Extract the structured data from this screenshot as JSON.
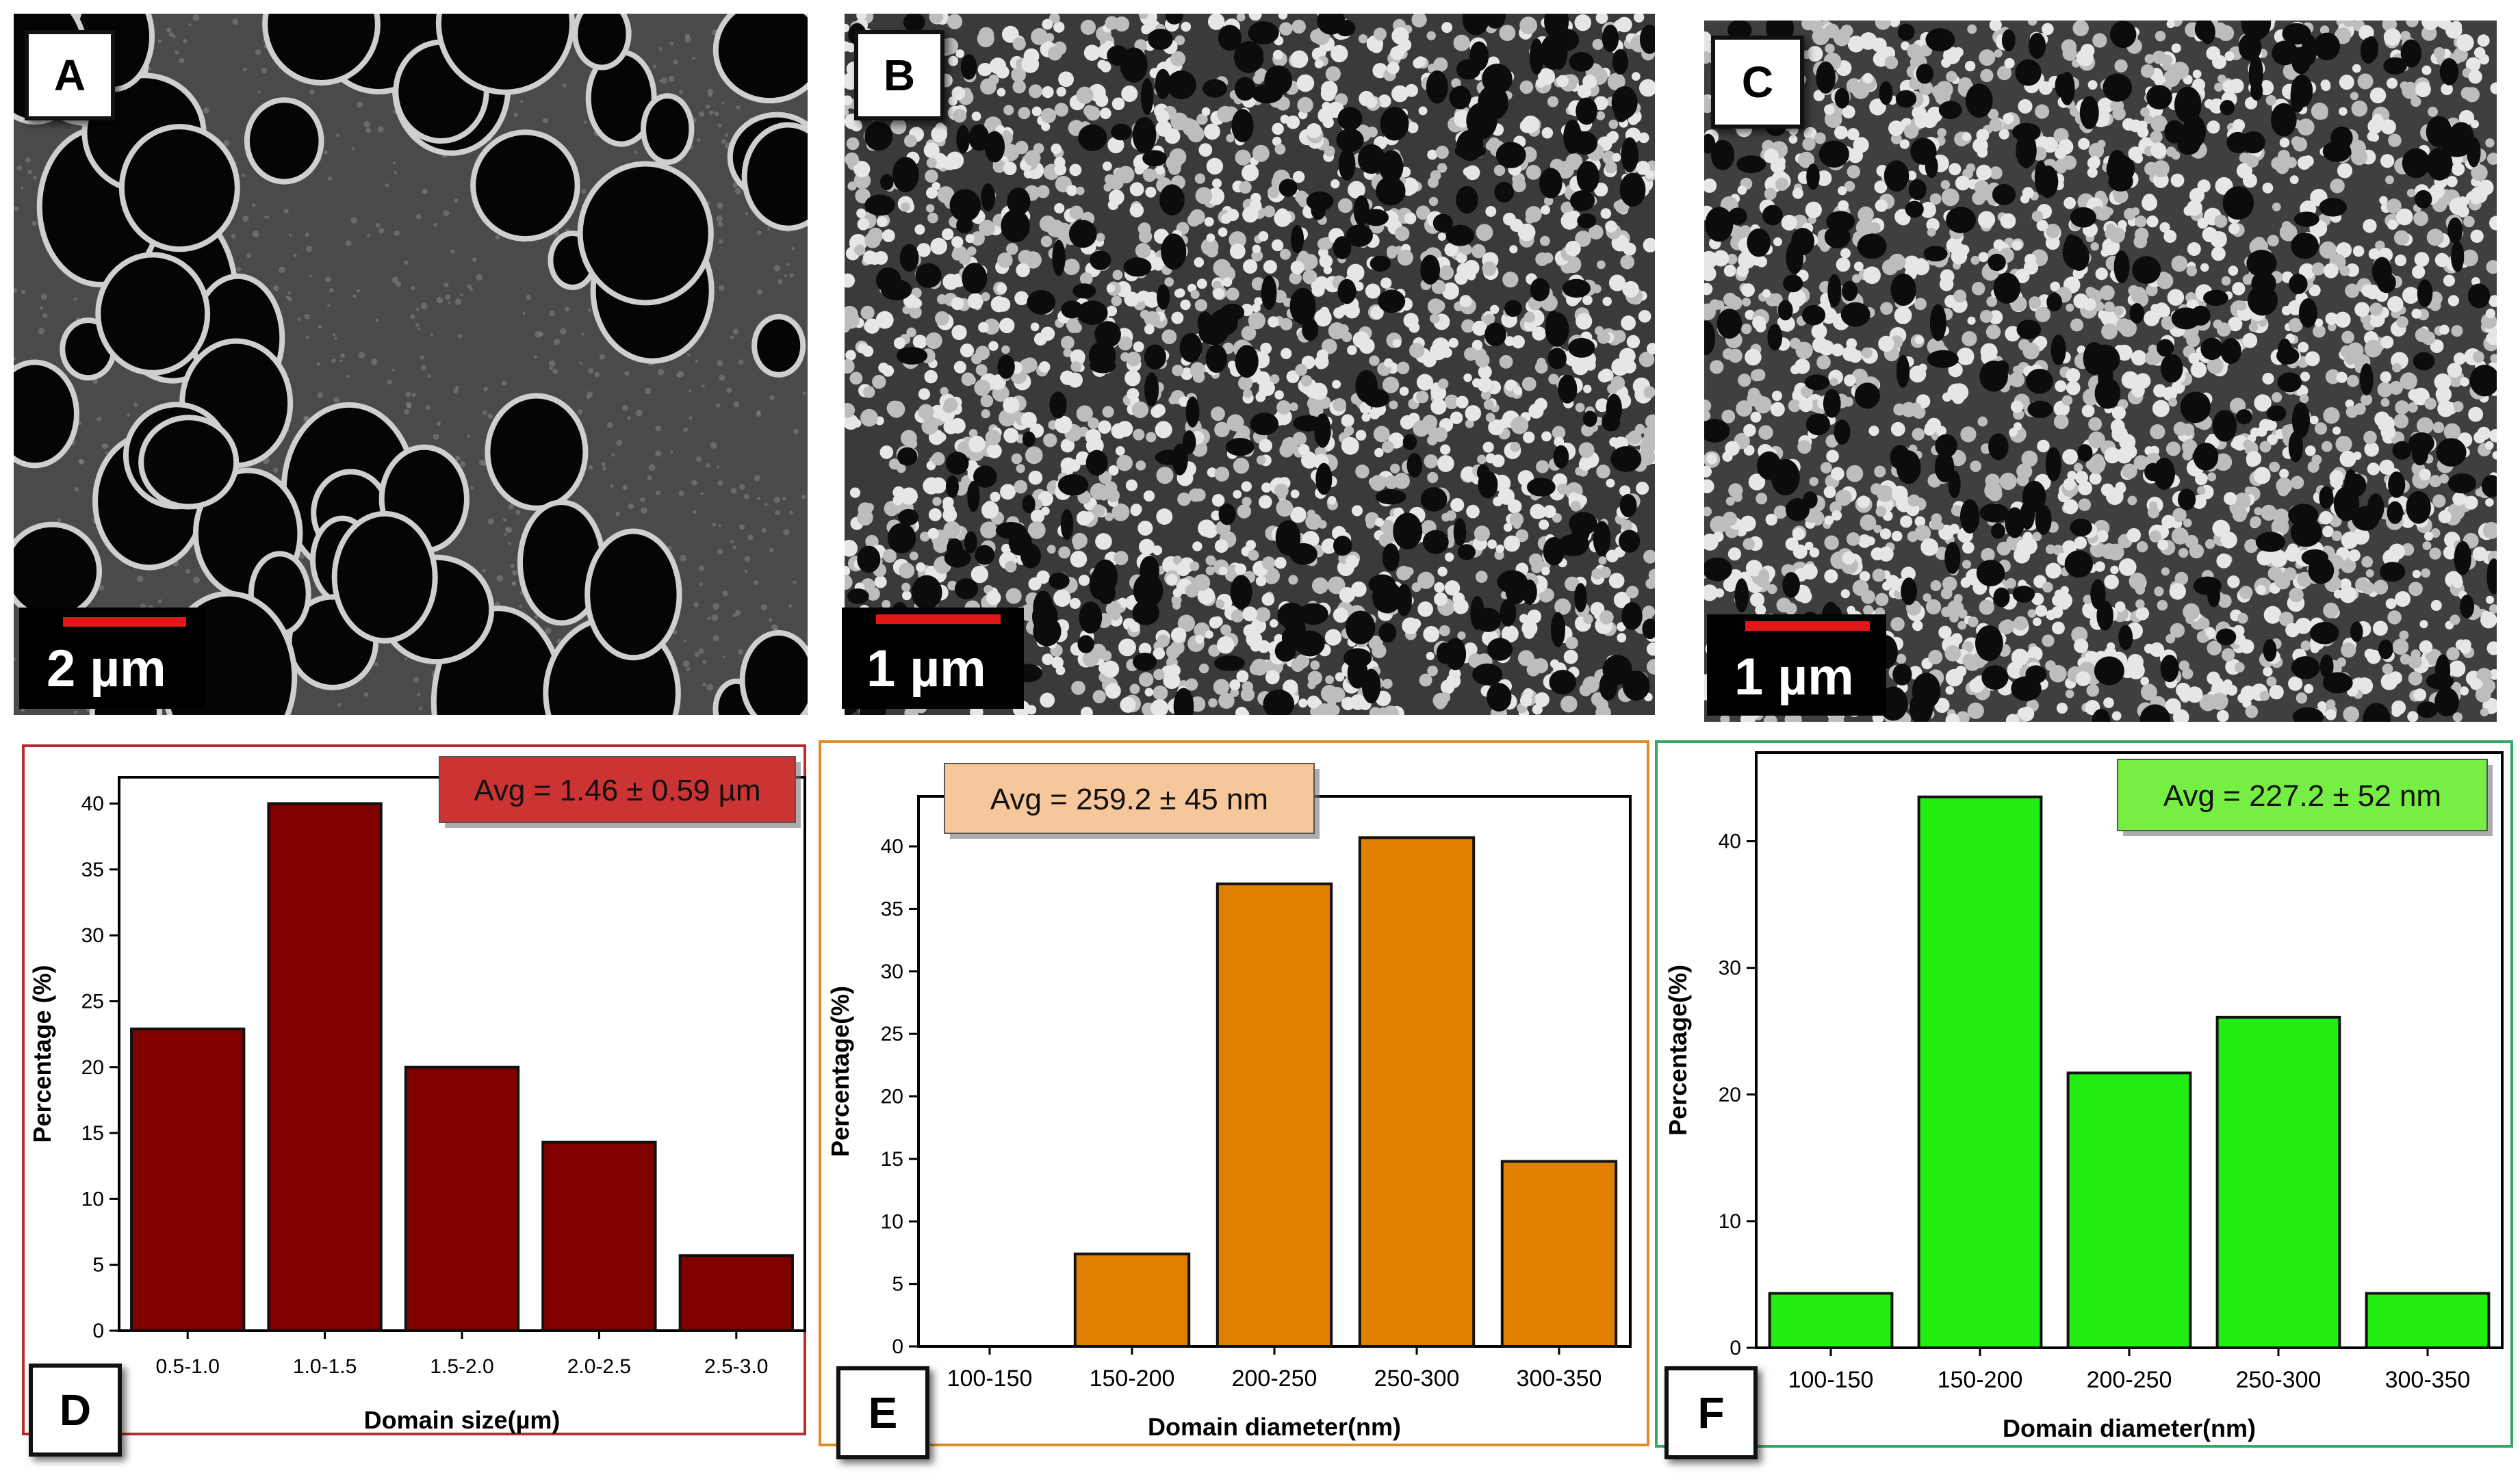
{
  "micrographs": [
    {
      "letter": "A",
      "scale_label": "2 µm"
    },
    {
      "letter": "B",
      "scale_label": "1 µm"
    },
    {
      "letter": "C",
      "scale_label": "1 µm"
    }
  ],
  "colors": {
    "d_bar": "#800000",
    "e_bar": "#e08000",
    "f_bar": "#22ee11",
    "d_frame": "#b03030",
    "e_frame": "#e08a2a",
    "f_frame": "#3aa56a",
    "d_avg_bg": "#cc3333",
    "e_avg_bg": "#f6c79a",
    "f_avg_bg": "#77ee44"
  },
  "chart_data": [
    {
      "type": "bar",
      "panel": "D",
      "categories": [
        "0.5-1.0",
        "1.0-1.5",
        "1.5-2.0",
        "2.0-2.5",
        "2.5-3.0"
      ],
      "values": [
        22.9,
        40.0,
        20.0,
        14.3,
        5.7
      ],
      "xlabel": "Domain size(µm)",
      "ylabel": "Percentage (%)",
      "ylim": [
        0,
        42
      ],
      "yticks": [
        0,
        5,
        10,
        15,
        20,
        25,
        30,
        35,
        40
      ],
      "annotation": "Avg = 1.46 ± 0.59 µm"
    },
    {
      "type": "bar",
      "panel": "E",
      "categories": [
        "100-150",
        "150-200",
        "200-250",
        "250-300",
        "300-350"
      ],
      "values": [
        0,
        7.4,
        37.0,
        40.7,
        14.8
      ],
      "xlabel": "Domain diameter(nm)",
      "ylabel": "Percentage(%)",
      "ylim": [
        0,
        44
      ],
      "yticks": [
        0,
        5,
        10,
        15,
        20,
        25,
        30,
        35,
        40
      ],
      "annotation": "Avg = 259.2 ± 45 nm"
    },
    {
      "type": "bar",
      "panel": "F",
      "categories": [
        "100-150",
        "150-200",
        "200-250",
        "250-300",
        "300-350"
      ],
      "values": [
        4.3,
        43.5,
        21.7,
        26.1,
        4.3
      ],
      "xlabel": "Domain diameter(nm)",
      "ylabel": "Percentage(%)",
      "ylim": [
        0,
        47
      ],
      "yticks": [
        0,
        10,
        20,
        30,
        40
      ],
      "annotation": "Avg = 227.2 ± 52 nm"
    }
  ]
}
